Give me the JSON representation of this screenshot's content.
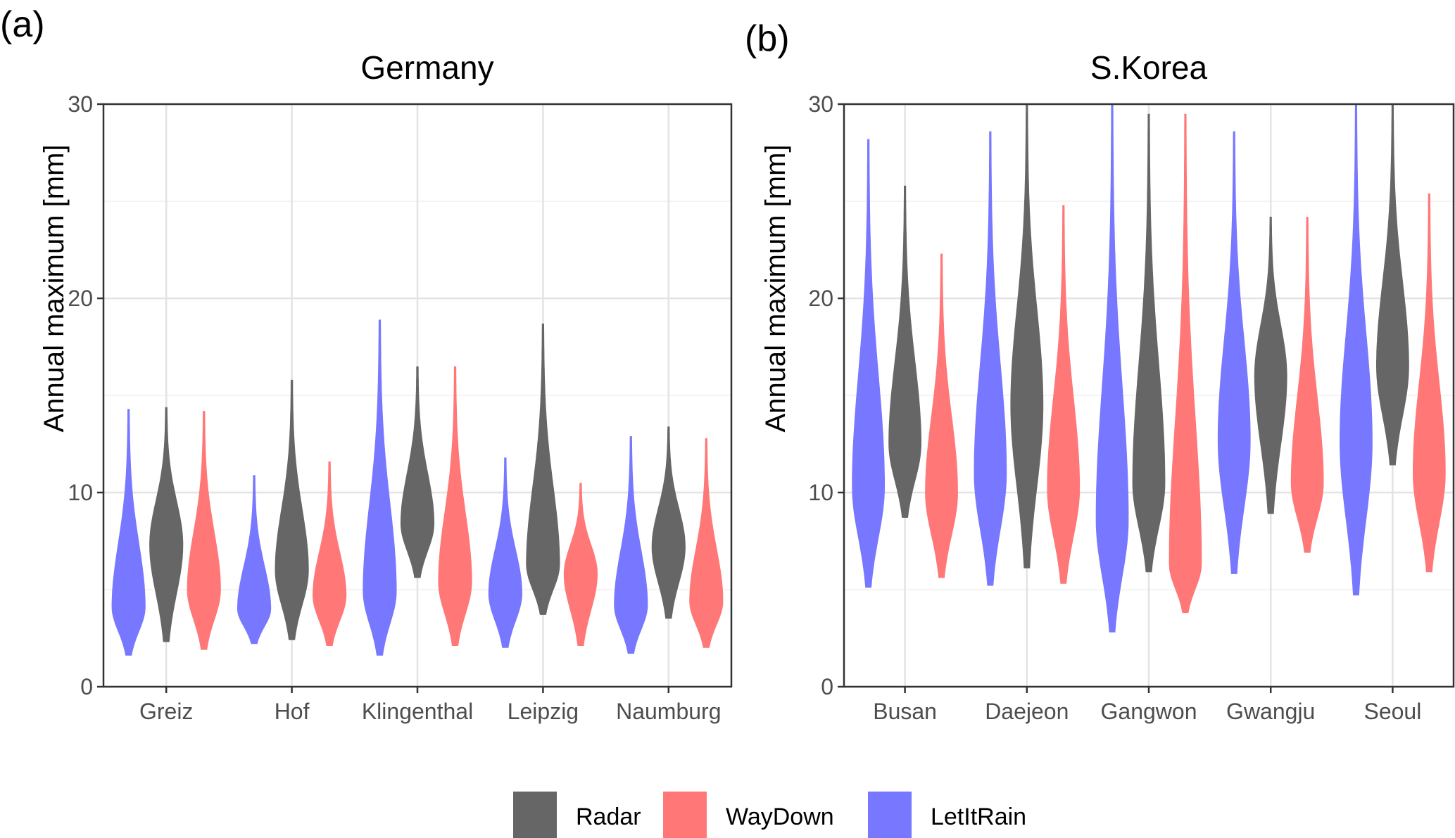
{
  "panels": [
    {
      "tag": "(a)",
      "chart_data": {
        "type": "violin",
        "title": "Germany",
        "xlabel": "",
        "ylabel": "Annual maximum [mm]",
        "ylim": [
          0,
          30
        ],
        "yticks": [
          0,
          10,
          20,
          30
        ],
        "grid": true,
        "categories": [
          "Greiz",
          "Hof",
          "Klingenthal",
          "Leipzig",
          "Naumburg"
        ],
        "series": [
          {
            "name": "LetItRain",
            "color": "#7777ff",
            "stats": [
              {
                "min": 1.6,
                "peak": 4.1,
                "max": 14.3
              },
              {
                "min": 2.2,
                "peak": 4.0,
                "max": 10.9
              },
              {
                "min": 1.6,
                "peak": 4.9,
                "max": 18.9
              },
              {
                "min": 2.0,
                "peak": 4.8,
                "max": 11.8
              },
              {
                "min": 1.7,
                "peak": 4.2,
                "max": 12.9
              }
            ]
          },
          {
            "name": "Radar",
            "color": "#666666",
            "stats": [
              {
                "min": 2.3,
                "peak": 7.3,
                "max": 14.4
              },
              {
                "min": 2.4,
                "peak": 6.0,
                "max": 15.8
              },
              {
                "min": 5.6,
                "peak": 8.4,
                "max": 16.5
              },
              {
                "min": 3.7,
                "peak": 6.3,
                "max": 18.7
              },
              {
                "min": 3.5,
                "peak": 7.2,
                "max": 13.4
              }
            ]
          },
          {
            "name": "WayDown",
            "color": "#ff7777",
            "stats": [
              {
                "min": 1.9,
                "peak": 5.0,
                "max": 14.2
              },
              {
                "min": 2.1,
                "peak": 4.7,
                "max": 11.6
              },
              {
                "min": 2.1,
                "peak": 5.4,
                "max": 16.5
              },
              {
                "min": 2.1,
                "peak": 5.8,
                "max": 10.5
              },
              {
                "min": 2.0,
                "peak": 4.4,
                "max": 12.8
              }
            ]
          }
        ]
      }
    },
    {
      "tag": "(b)",
      "chart_data": {
        "type": "violin",
        "title": "S.Korea",
        "xlabel": "",
        "ylabel": "Annual maximum [mm]",
        "ylim": [
          0,
          30
        ],
        "yticks": [
          0,
          10,
          20,
          30
        ],
        "grid": true,
        "categories": [
          "Busan",
          "Daejeon",
          "Gangwon",
          "Gwangju",
          "Seoul"
        ],
        "series": [
          {
            "name": "LetItRain",
            "color": "#7777ff",
            "stats": [
              {
                "min": 5.1,
                "peak": 10.3,
                "max": 28.2
              },
              {
                "min": 5.2,
                "peak": 11.0,
                "max": 28.6
              },
              {
                "min": 2.8,
                "peak": 8.6,
                "max": 30.0
              },
              {
                "min": 5.8,
                "peak": 12.7,
                "max": 28.6
              },
              {
                "min": 4.7,
                "peak": 12.6,
                "max": 30.0
              }
            ]
          },
          {
            "name": "Radar",
            "color": "#666666",
            "stats": [
              {
                "min": 8.7,
                "peak": 12.5,
                "max": 25.8
              },
              {
                "min": 6.1,
                "peak": 14.5,
                "max": 30.0
              },
              {
                "min": 5.9,
                "peak": 10.5,
                "max": 29.5
              },
              {
                "min": 8.9,
                "peak": 16.0,
                "max": 24.2
              },
              {
                "min": 11.4,
                "peak": 16.5,
                "max": 30.0
              }
            ]
          },
          {
            "name": "WayDown",
            "color": "#ff7777",
            "stats": [
              {
                "min": 5.6,
                "peak": 10.0,
                "max": 22.3
              },
              {
                "min": 5.3,
                "peak": 10.2,
                "max": 24.8
              },
              {
                "min": 3.8,
                "peak": 6.3,
                "max": 29.5
              },
              {
                "min": 6.9,
                "peak": 10.5,
                "max": 24.2
              },
              {
                "min": 5.9,
                "peak": 11.0,
                "max": 25.4
              }
            ]
          }
        ]
      }
    }
  ],
  "legend": {
    "items": [
      {
        "label": "Radar",
        "color": "#666666"
      },
      {
        "label": "WayDown",
        "color": "#ff7777"
      },
      {
        "label": "LetItRain",
        "color": "#7777ff"
      }
    ]
  }
}
